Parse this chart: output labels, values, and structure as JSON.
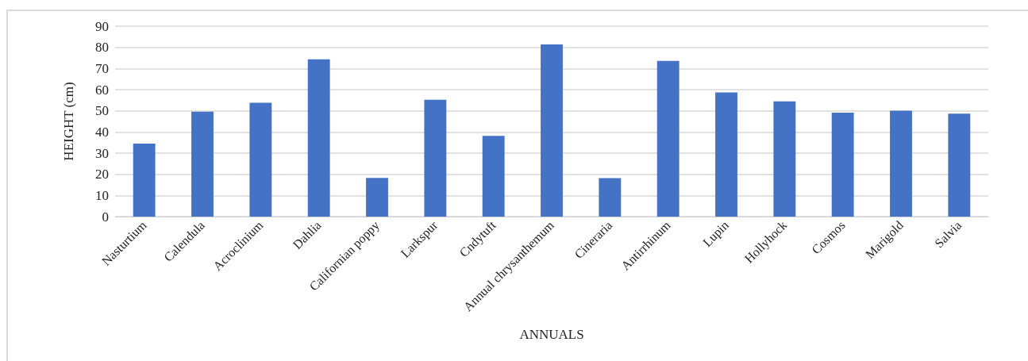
{
  "chart_data": {
    "type": "bar",
    "xlabel": "ANNUALS",
    "ylabel": "HEIGHT (cm)",
    "categories": [
      "Nasturtium",
      "Calendula",
      "Acroclinium",
      "Dahlia",
      "Californian poppy",
      "Larkspur",
      "Cndytuft",
      "Annual chrysanthemum",
      "Cineraria",
      "Antirrhinum",
      "Lupin",
      "Hollyhock",
      "Cosmos",
      "Marigold",
      "Salvia"
    ],
    "values": [
      34.5,
      49.6,
      53.8,
      74.3,
      18.3,
      55.2,
      38.2,
      81.4,
      18.2,
      73.6,
      58.7,
      54.5,
      49.1,
      50.1,
      48.7
    ],
    "color": "#4472c4",
    "ylim": [
      0,
      90
    ],
    "yticks": [
      0,
      10,
      20,
      30,
      40,
      50,
      60,
      70,
      80,
      90
    ],
    "grid": "y"
  }
}
